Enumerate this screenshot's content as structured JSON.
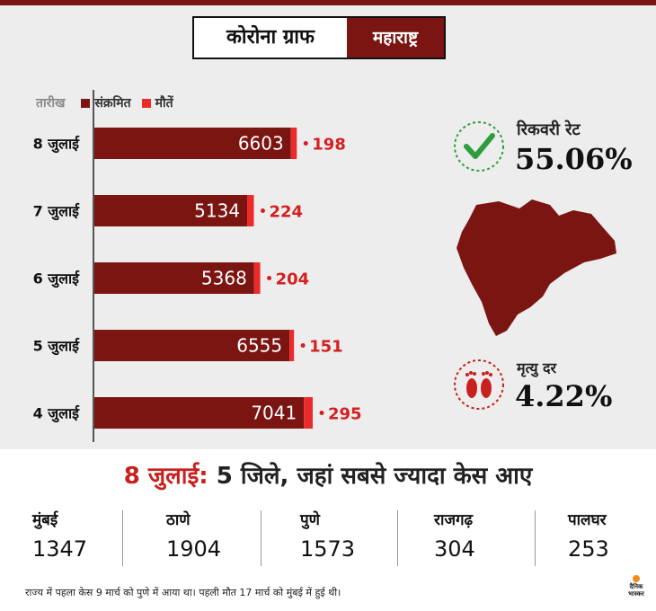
{
  "header": {
    "title": "कोरोना ग्राफ",
    "region": "महाराष्ट्र"
  },
  "legend": {
    "date_label": "तारीख",
    "infected_label": "संक्रमित",
    "deaths_label": "मौतें"
  },
  "colors": {
    "infected": "#7a1512",
    "deaths": "#ec2a2a",
    "death_text": "#d42020"
  },
  "chart_data": {
    "type": "bar",
    "orientation": "horizontal",
    "stacked": true,
    "categories": [
      "8 जुलाई",
      "7 जुलाई",
      "6 जुलाई",
      "5 जुलाई",
      "4 जुलाई"
    ],
    "series": [
      {
        "name": "संक्रमित",
        "values": [
          6603,
          5134,
          5368,
          6555,
          7041
        ]
      },
      {
        "name": "मौतें",
        "values": [
          198,
          224,
          204,
          151,
          295
        ]
      }
    ],
    "xlabel": "",
    "ylabel": "तारीख",
    "title": "कोरोना ग्राफ"
  },
  "stats": {
    "recovery_label": "रिकवरी रेट",
    "recovery_value": "55.06%",
    "death_rate_label": "मृत्यु दर",
    "death_rate_value": "4.22%",
    "recovery_icon": "check-icon",
    "death_icon": "footprints-icon"
  },
  "districts_title": {
    "date": "8 जुलाई:",
    "text": " 5 जिले, जहां सबसे ज्यादा केस आए"
  },
  "districts": [
    {
      "name": "मुंबई",
      "value": "1347"
    },
    {
      "name": "ठाणे",
      "value": "1904"
    },
    {
      "name": "पुणे",
      "value": "1573"
    },
    {
      "name": "राजगढ़",
      "value": "304"
    },
    {
      "name": "पालघर",
      "value": "253"
    }
  ],
  "footnote": "राज्य में पहला केस 9 मार्च को पुणे में आया था। पहली मौत 17 मार्च को मुंबई में हुई थी।",
  "logo": {
    "line1": "दैनिक",
    "line2": "भास्कर"
  }
}
